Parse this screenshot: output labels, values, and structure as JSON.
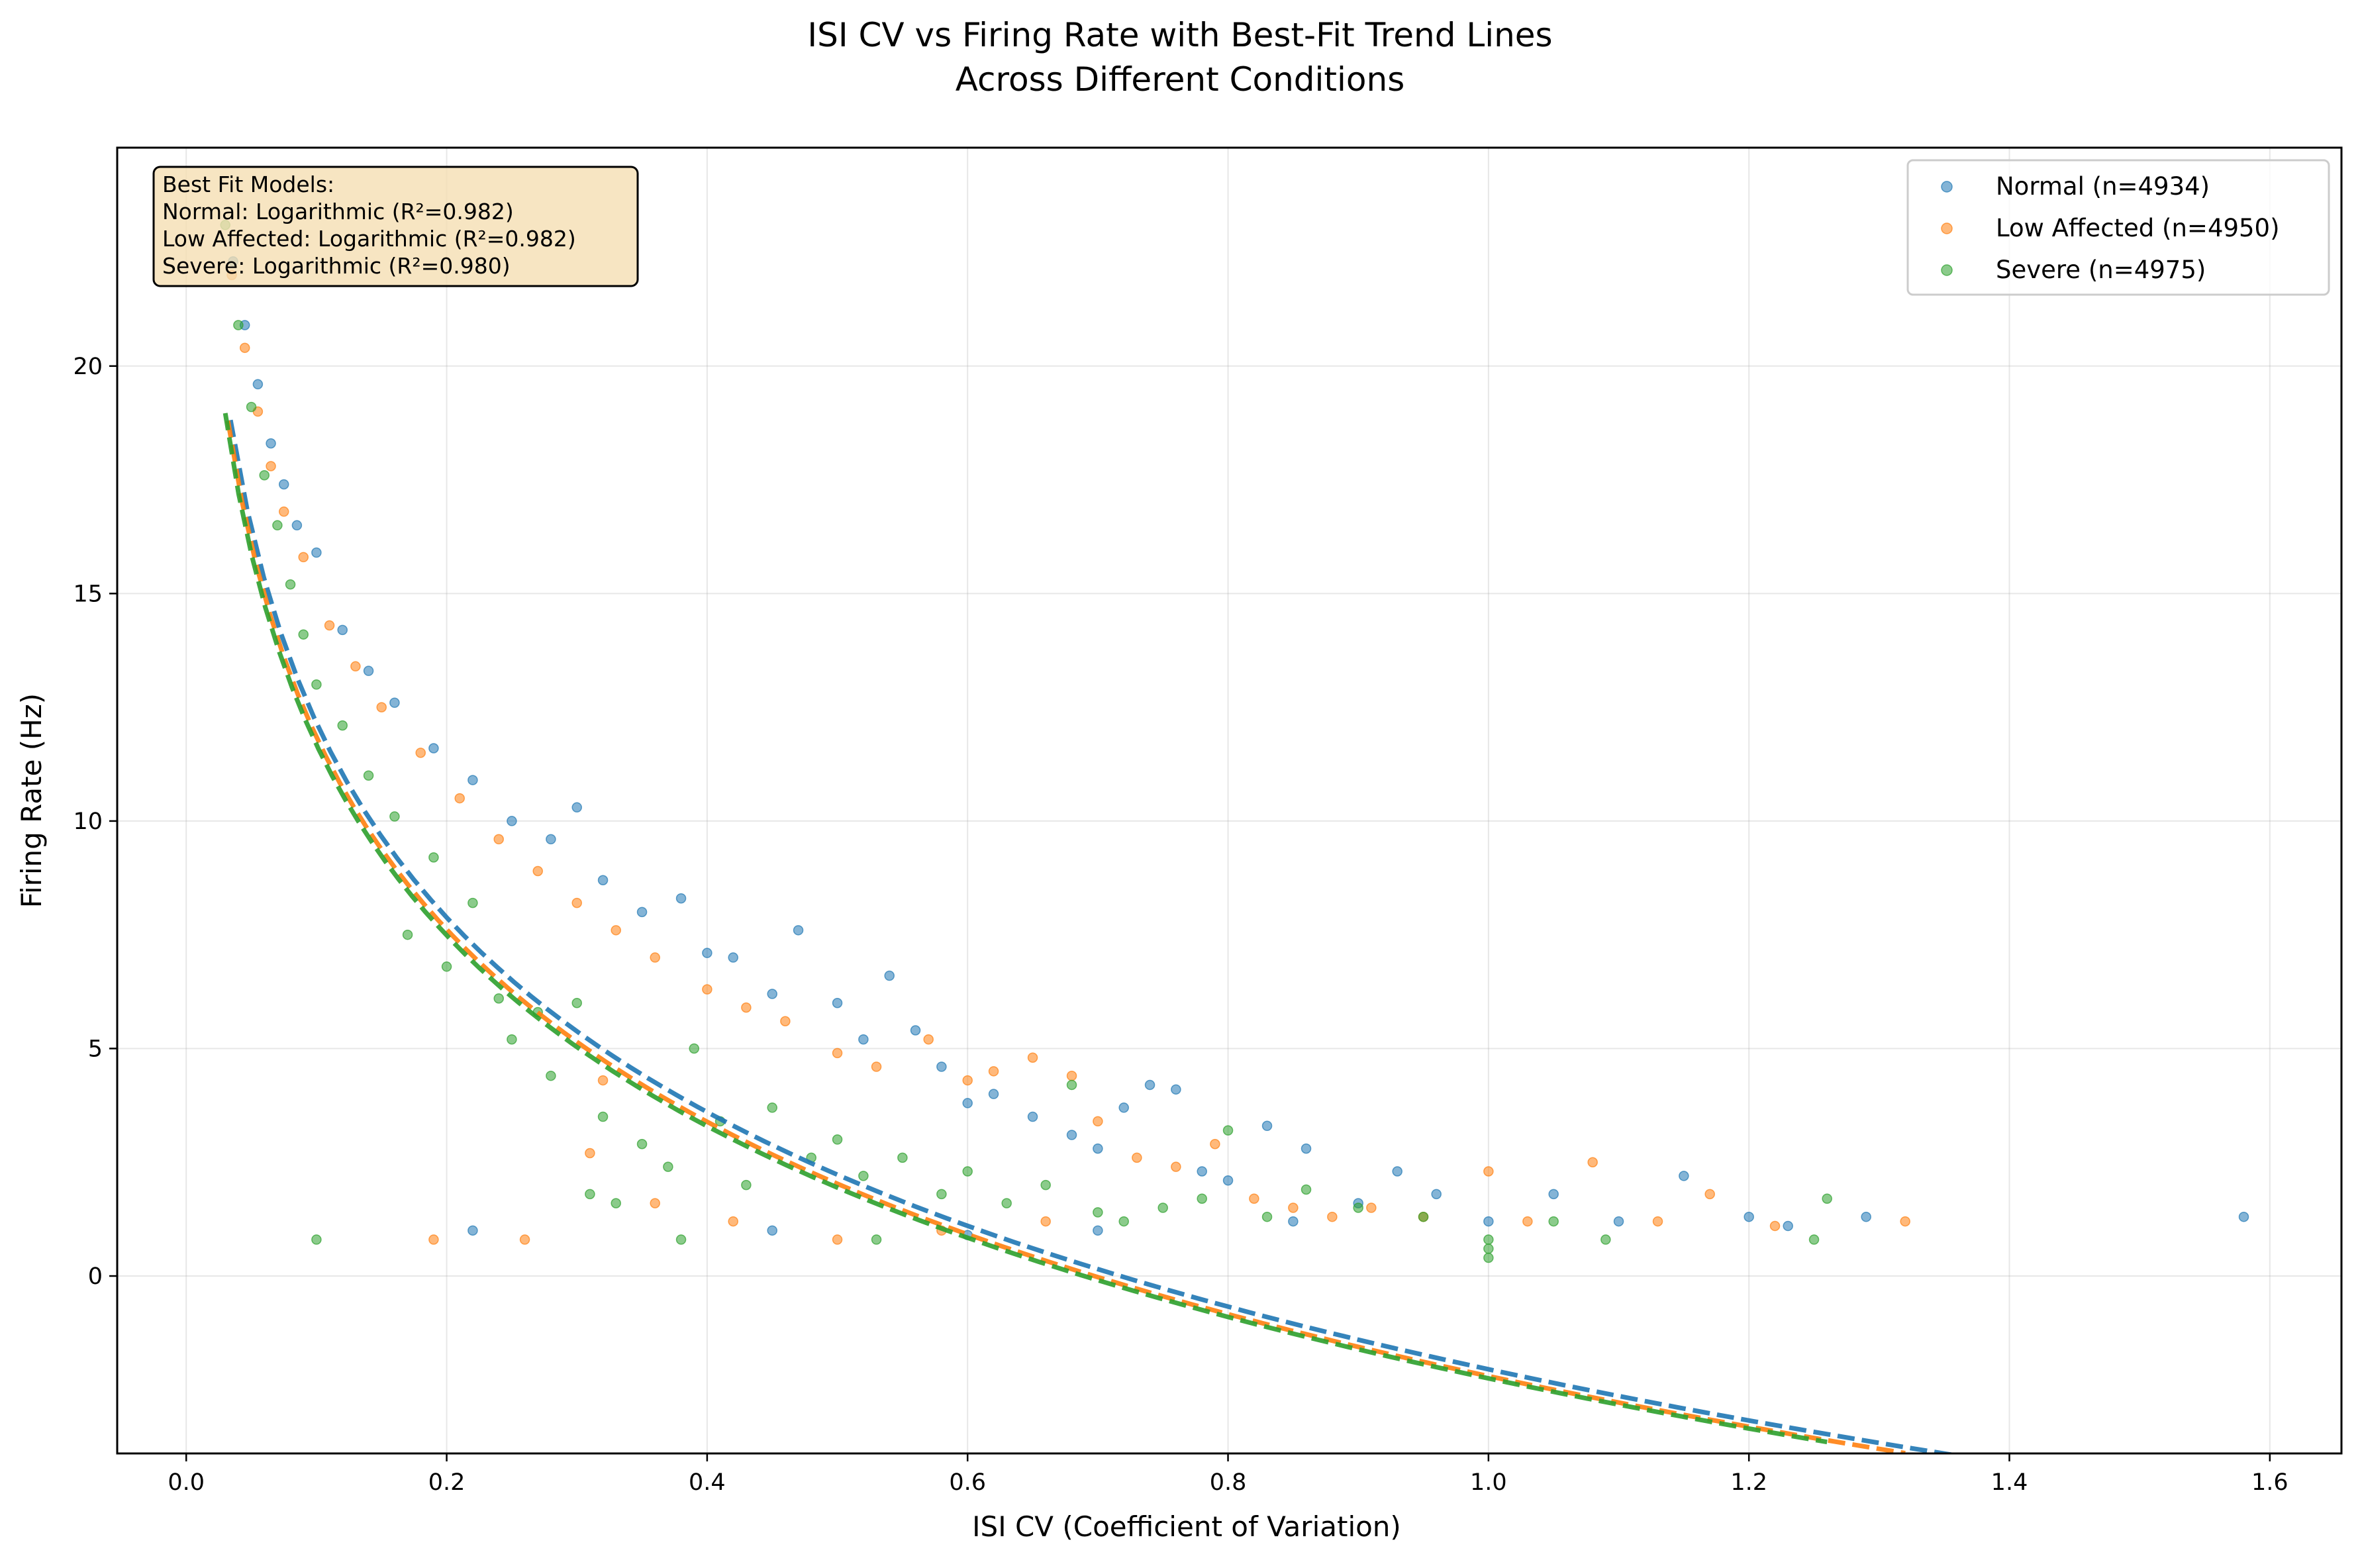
{
  "chart_data": {
    "type": "scatter",
    "title": "ISI CV vs Firing Rate with Best-Fit Trend Lines\nAcross Different Conditions",
    "xlabel": "ISI CV (Coefficient of Variation)",
    "ylabel": "Firing Rate (Hz)",
    "xlim": [
      -0.053,
      1.655
    ],
    "ylim": [
      -3.9,
      24.8
    ],
    "xticks": [
      0.0,
      0.2,
      0.4,
      0.6,
      0.8,
      1.0,
      1.2,
      1.4,
      1.6
    ],
    "xtick_labels": [
      "0.0",
      "0.2",
      "0.4",
      "0.6",
      "0.8",
      "1.0",
      "1.2",
      "1.4",
      "1.6"
    ],
    "yticks": [
      0,
      5,
      10,
      15,
      20
    ],
    "ytick_labels": [
      "0",
      "5",
      "10",
      "15",
      "20"
    ],
    "grid": true,
    "legend_placement": "upper-right",
    "annotation": {
      "placement": "upper-left",
      "lines": [
        "Best Fit Models:",
        "Normal: Logarithmic (R²=0.982)",
        "Low Affected: Logarithmic (R²=0.982)",
        "Severe: Logarithmic (R²=0.980)"
      ]
    },
    "series": [
      {
        "name": "Normal (n=4934)",
        "color": "#1f77b4",
        "fit": {
          "model": "logarithmic",
          "a": -2.05,
          "b": -6.17,
          "x_range": [
            0.034,
            1.57
          ]
        },
        "points": [
          [
            0.036,
            22.3
          ],
          [
            0.045,
            20.9
          ],
          [
            0.055,
            19.6
          ],
          [
            0.065,
            18.3
          ],
          [
            0.075,
            17.4
          ],
          [
            0.085,
            16.5
          ],
          [
            0.1,
            15.9
          ],
          [
            0.12,
            14.2
          ],
          [
            0.14,
            13.3
          ],
          [
            0.16,
            12.6
          ],
          [
            0.19,
            11.6
          ],
          [
            0.22,
            10.9
          ],
          [
            0.25,
            10.0
          ],
          [
            0.28,
            9.6
          ],
          [
            0.3,
            10.3
          ],
          [
            0.32,
            8.7
          ],
          [
            0.35,
            8.0
          ],
          [
            0.38,
            8.3
          ],
          [
            0.4,
            7.1
          ],
          [
            0.42,
            7.0
          ],
          [
            0.45,
            6.2
          ],
          [
            0.47,
            7.6
          ],
          [
            0.5,
            6.0
          ],
          [
            0.52,
            5.2
          ],
          [
            0.54,
            6.6
          ],
          [
            0.56,
            5.4
          ],
          [
            0.58,
            4.6
          ],
          [
            0.6,
            3.8
          ],
          [
            0.62,
            4.0
          ],
          [
            0.65,
            3.5
          ],
          [
            0.68,
            3.1
          ],
          [
            0.7,
            2.8
          ],
          [
            0.72,
            3.7
          ],
          [
            0.74,
            4.2
          ],
          [
            0.76,
            4.1
          ],
          [
            0.78,
            2.3
          ],
          [
            0.8,
            2.1
          ],
          [
            0.83,
            3.3
          ],
          [
            0.86,
            2.8
          ],
          [
            0.9,
            1.6
          ],
          [
            0.93,
            2.3
          ],
          [
            0.96,
            1.8
          ],
          [
            1.0,
            1.2
          ],
          [
            1.05,
            1.8
          ],
          [
            1.1,
            1.2
          ],
          [
            1.15,
            2.2
          ],
          [
            1.2,
            1.3
          ],
          [
            1.23,
            1.1
          ],
          [
            1.29,
            1.3
          ],
          [
            1.58,
            1.3
          ],
          [
            0.22,
            1.0
          ],
          [
            0.45,
            1.0
          ],
          [
            0.6,
            0.9
          ],
          [
            0.7,
            1.0
          ],
          [
            0.85,
            1.2
          ]
        ]
      },
      {
        "name": "Low Affected (n=4950)",
        "color": "#ff7f0e",
        "fit": {
          "model": "logarithmic",
          "a": -2.2,
          "b": -6.1,
          "x_range": [
            0.032,
            1.32
          ]
        },
        "points": [
          [
            0.035,
            22.0
          ],
          [
            0.045,
            20.4
          ],
          [
            0.055,
            19.0
          ],
          [
            0.065,
            17.8
          ],
          [
            0.075,
            16.8
          ],
          [
            0.09,
            15.8
          ],
          [
            0.11,
            14.3
          ],
          [
            0.13,
            13.4
          ],
          [
            0.15,
            12.5
          ],
          [
            0.18,
            11.5
          ],
          [
            0.21,
            10.5
          ],
          [
            0.24,
            9.6
          ],
          [
            0.27,
            8.9
          ],
          [
            0.3,
            8.2
          ],
          [
            0.33,
            7.6
          ],
          [
            0.36,
            7.0
          ],
          [
            0.4,
            6.3
          ],
          [
            0.43,
            5.9
          ],
          [
            0.46,
            5.6
          ],
          [
            0.5,
            4.9
          ],
          [
            0.53,
            4.6
          ],
          [
            0.57,
            5.2
          ],
          [
            0.6,
            4.3
          ],
          [
            0.62,
            4.5
          ],
          [
            0.65,
            4.8
          ],
          [
            0.68,
            4.4
          ],
          [
            0.7,
            3.4
          ],
          [
            0.73,
            2.6
          ],
          [
            0.76,
            2.4
          ],
          [
            0.79,
            2.9
          ],
          [
            0.82,
            1.7
          ],
          [
            0.85,
            1.5
          ],
          [
            0.88,
            1.3
          ],
          [
            0.91,
            1.5
          ],
          [
            0.95,
            1.3
          ],
          [
            1.0,
            2.3
          ],
          [
            1.03,
            1.2
          ],
          [
            1.08,
            2.5
          ],
          [
            1.13,
            1.2
          ],
          [
            1.17,
            1.8
          ],
          [
            1.22,
            1.1
          ],
          [
            1.32,
            1.2
          ],
          [
            0.19,
            0.8
          ],
          [
            0.26,
            0.8
          ],
          [
            0.31,
            2.7
          ],
          [
            0.32,
            4.3
          ],
          [
            0.36,
            1.6
          ],
          [
            0.42,
            1.2
          ],
          [
            0.5,
            0.8
          ],
          [
            0.58,
            1.0
          ],
          [
            0.66,
            1.2
          ]
        ]
      },
      {
        "name": "Severe (n=4975)",
        "color": "#2ca02c",
        "fit": {
          "model": "logarithmic",
          "a": -2.25,
          "b": -6.05,
          "x_range": [
            0.03,
            1.26
          ]
        },
        "points": [
          [
            0.03,
            23.1
          ],
          [
            0.04,
            20.9
          ],
          [
            0.05,
            19.1
          ],
          [
            0.06,
            17.6
          ],
          [
            0.07,
            16.5
          ],
          [
            0.08,
            15.2
          ],
          [
            0.09,
            14.1
          ],
          [
            0.1,
            13.0
          ],
          [
            0.12,
            12.1
          ],
          [
            0.14,
            11.0
          ],
          [
            0.16,
            10.1
          ],
          [
            0.17,
            7.5
          ],
          [
            0.19,
            9.2
          ],
          [
            0.2,
            6.8
          ],
          [
            0.22,
            8.2
          ],
          [
            0.24,
            6.1
          ],
          [
            0.25,
            5.2
          ],
          [
            0.27,
            5.8
          ],
          [
            0.28,
            4.4
          ],
          [
            0.3,
            6.0
          ],
          [
            0.31,
            1.8
          ],
          [
            0.32,
            3.5
          ],
          [
            0.33,
            1.6
          ],
          [
            0.35,
            2.9
          ],
          [
            0.37,
            2.4
          ],
          [
            0.39,
            5.0
          ],
          [
            0.41,
            3.4
          ],
          [
            0.43,
            2.0
          ],
          [
            0.45,
            3.7
          ],
          [
            0.48,
            2.6
          ],
          [
            0.5,
            3.0
          ],
          [
            0.52,
            2.2
          ],
          [
            0.55,
            2.6
          ],
          [
            0.58,
            1.8
          ],
          [
            0.6,
            2.3
          ],
          [
            0.63,
            1.6
          ],
          [
            0.66,
            2.0
          ],
          [
            0.68,
            4.2
          ],
          [
            0.7,
            1.4
          ],
          [
            0.72,
            1.2
          ],
          [
            0.75,
            1.5
          ],
          [
            0.78,
            1.7
          ],
          [
            0.8,
            3.2
          ],
          [
            0.83,
            1.3
          ],
          [
            0.86,
            1.9
          ],
          [
            0.9,
            1.5
          ],
          [
            0.95,
            1.3
          ],
          [
            1.0,
            0.6
          ],
          [
            1.0,
            0.4
          ],
          [
            1.0,
            0.8
          ],
          [
            1.05,
            1.2
          ],
          [
            1.09,
            0.8
          ],
          [
            1.25,
            0.8
          ],
          [
            1.26,
            1.7
          ],
          [
            0.1,
            0.8
          ],
          [
            0.38,
            0.8
          ],
          [
            0.53,
            0.8
          ]
        ]
      }
    ]
  }
}
